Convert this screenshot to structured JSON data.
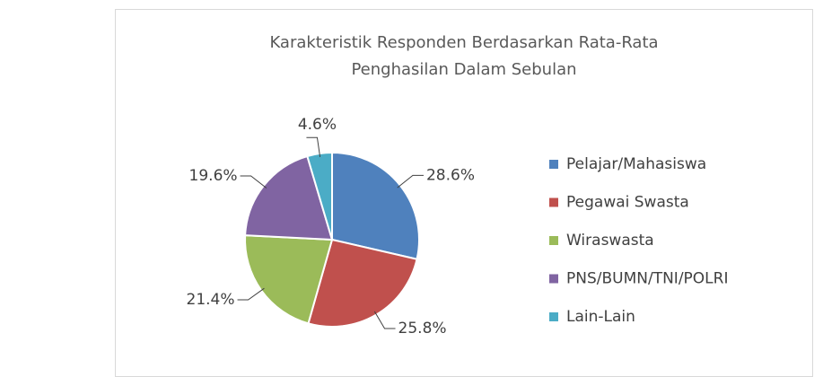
{
  "chart_data": {
    "type": "pie",
    "title": "Karakteristik Responden Berdasarkan Rata-Rata Penghasilan Dalam Sebulan",
    "categories": [
      "Pelajar/Mahasiswa",
      "Pegawai Swasta",
      "Wiraswasta",
      "PNS/BUMN/TNI/POLRI",
      "Lain-Lain"
    ],
    "values": [
      28.6,
      25.8,
      21.4,
      19.6,
      4.6
    ],
    "value_labels": [
      "28.6%",
      "25.8%",
      "21.4%",
      "19.6%",
      "4.6%"
    ],
    "colors": [
      "#4f81bd",
      "#c0504d",
      "#9bbb59",
      "#8064a2",
      "#4bacc6"
    ],
    "legend": "right"
  }
}
